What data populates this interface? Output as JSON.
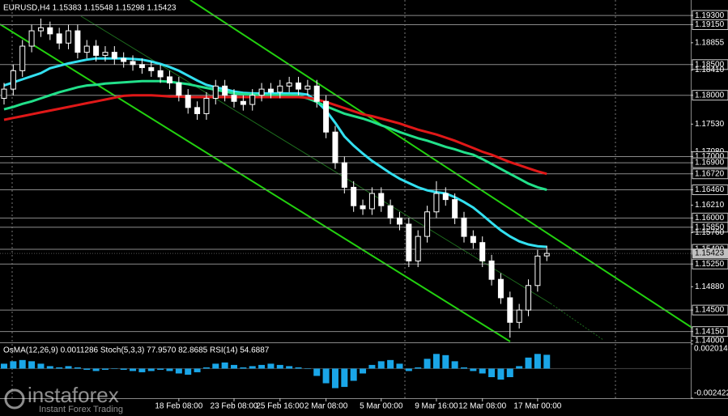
{
  "chart_data": {
    "type": "candlestick",
    "title": "EURUSD,H4  1.15383 1.15548 1.15298 1.15423",
    "categories": [
      null,
      null,
      null,
      null,
      null,
      null,
      null,
      null,
      null,
      null,
      null,
      null,
      null,
      null,
      null,
      null,
      null,
      null,
      null,
      "18 Feb 08:00",
      null,
      null,
      null,
      null,
      null,
      "23 Feb 08:00",
      null,
      null,
      null,
      null,
      "25 Feb 16:00",
      null,
      null,
      null,
      null,
      "2 Mar 08:00",
      null,
      null,
      null,
      null,
      null,
      "5 Mar 00:00",
      null,
      null,
      null,
      null,
      null,
      "9 Mar 16:00",
      null,
      null,
      null,
      null,
      "12 Mar 08:00",
      null,
      null,
      null,
      null,
      null,
      "17 Mar 00:00",
      null
    ],
    "open": [
      1.1795,
      1.181,
      1.184,
      1.188,
      1.1905,
      1.191,
      1.19,
      1.1885,
      1.1905,
      1.187,
      1.188,
      1.1865,
      1.187,
      1.186,
      1.1855,
      1.185,
      1.1845,
      1.184,
      1.183,
      1.182,
      1.18,
      1.178,
      1.177,
      1.1795,
      1.1815,
      1.18,
      1.179,
      1.1785,
      1.18,
      1.181,
      1.1805,
      1.1815,
      1.182,
      1.181,
      1.1815,
      1.179,
      1.174,
      1.169,
      1.165,
      1.162,
      1.1615,
      1.164,
      1.162,
      1.16,
      1.159,
      1.153,
      1.157,
      1.161,
      1.164,
      1.163,
      1.16,
      1.157,
      1.156,
      1.153,
      1.15,
      1.147,
      1.143,
      1.145,
      1.149,
      1.15383
    ],
    "high": [
      1.182,
      1.185,
      1.189,
      1.1915,
      1.1925,
      1.192,
      1.191,
      1.1915,
      1.1915,
      1.189,
      1.189,
      1.188,
      1.188,
      1.187,
      1.1865,
      1.186,
      1.1855,
      1.185,
      1.184,
      1.183,
      1.181,
      1.179,
      1.1805,
      1.1825,
      1.1825,
      1.181,
      1.18,
      1.181,
      1.182,
      1.182,
      1.1825,
      1.183,
      1.183,
      1.1825,
      1.1825,
      1.18,
      1.175,
      1.17,
      1.166,
      1.163,
      1.165,
      1.165,
      1.163,
      1.161,
      1.16,
      1.158,
      1.162,
      1.166,
      1.165,
      1.164,
      1.161,
      1.158,
      1.157,
      1.154,
      1.151,
      1.148,
      1.146,
      1.15,
      1.1548,
      1.15548
    ],
    "low": [
      1.1785,
      1.18,
      1.183,
      1.187,
      1.1895,
      1.189,
      1.1875,
      1.1875,
      1.186,
      1.186,
      1.1855,
      1.1855,
      1.185,
      1.1845,
      1.184,
      1.1835,
      1.183,
      1.182,
      1.181,
      1.179,
      1.177,
      1.176,
      1.176,
      1.1785,
      1.179,
      1.178,
      1.1775,
      1.1775,
      1.179,
      1.1795,
      1.1795,
      1.1805,
      1.18,
      1.18,
      1.178,
      1.173,
      1.168,
      1.164,
      1.161,
      1.1605,
      1.1605,
      1.161,
      1.159,
      1.158,
      1.152,
      1.152,
      1.156,
      1.16,
      1.162,
      1.159,
      1.156,
      1.155,
      1.152,
      1.149,
      1.146,
      1.1405,
      1.142,
      1.144,
      1.148,
      1.15298
    ],
    "close": [
      1.181,
      1.184,
      1.188,
      1.1905,
      1.191,
      1.19,
      1.1885,
      1.1905,
      1.187,
      1.188,
      1.1865,
      1.187,
      1.186,
      1.1855,
      1.185,
      1.1845,
      1.184,
      1.183,
      1.182,
      1.18,
      1.178,
      1.177,
      1.1795,
      1.1815,
      1.18,
      1.179,
      1.1785,
      1.18,
      1.181,
      1.1805,
      1.1815,
      1.182,
      1.181,
      1.1815,
      1.179,
      1.174,
      1.169,
      1.165,
      1.162,
      1.1615,
      1.164,
      1.162,
      1.16,
      1.159,
      1.153,
      1.157,
      1.161,
      1.164,
      1.163,
      1.16,
      1.157,
      1.156,
      1.153,
      1.15,
      1.147,
      1.143,
      1.145,
      1.149,
      1.1538,
      1.15423
    ],
    "candle_color": "#ffffff",
    "series": [
      {
        "color": "#33e0f0",
        "values": [
          1.1816,
          1.1821,
          1.1826,
          1.1831,
          1.1836,
          1.1844,
          1.1848,
          1.1852,
          1.1855,
          1.1858,
          1.186,
          1.186,
          1.186,
          1.186,
          1.1859,
          1.1858,
          1.1855,
          1.1851,
          1.1846,
          1.184,
          1.1832,
          1.1824,
          1.1817,
          1.1813,
          1.181,
          1.1806,
          1.1804,
          1.1803,
          1.1803,
          1.1803,
          1.1803,
          1.1803,
          1.1803,
          1.1801,
          1.179,
          1.1775,
          1.1755,
          1.1733,
          1.1718,
          1.1705,
          1.1693,
          1.1683,
          1.1673,
          1.1664,
          1.1657,
          1.165,
          1.1645,
          1.1642,
          1.164,
          1.1634,
          1.1626,
          1.1617,
          1.1605,
          1.1592,
          1.158,
          1.157,
          1.1562,
          1.1557,
          1.1554,
          1.1553
        ]
      },
      {
        "color": "#22e08a",
        "values": [
          1.1777,
          1.1781,
          1.1786,
          1.179,
          1.1795,
          1.18,
          1.1805,
          1.1809,
          1.1813,
          1.1816,
          1.1817,
          1.1819,
          1.182,
          1.1821,
          1.1822,
          1.1823,
          1.1823,
          1.1823,
          1.1822,
          1.182,
          1.1818,
          1.1815,
          1.1812,
          1.1809,
          1.1806,
          1.1803,
          1.1802,
          1.1801,
          1.18,
          1.18,
          1.18,
          1.18,
          1.1799,
          1.1795,
          1.1789,
          1.1782,
          1.1776,
          1.177,
          1.1766,
          1.1762,
          1.1757,
          1.1751,
          1.1746,
          1.174,
          1.1735,
          1.173,
          1.1726,
          1.1721,
          1.1716,
          1.1712,
          1.1707,
          1.1703,
          1.1696,
          1.1688,
          1.168,
          1.1672,
          1.1664,
          1.1656,
          1.165,
          1.1646
        ]
      },
      {
        "color": "#e01818",
        "values": [
          1.176,
          1.1763,
          1.1766,
          1.1769,
          1.1772,
          1.1775,
          1.1778,
          1.1781,
          1.1784,
          1.1787,
          1.179,
          1.1793,
          1.1796,
          1.1799,
          1.18,
          1.18,
          1.18,
          1.1799,
          1.1798,
          1.1798,
          1.1797,
          1.1797,
          1.1797,
          1.1797,
          1.1797,
          1.1797,
          1.1797,
          1.1797,
          1.1797,
          1.1797,
          1.1797,
          1.1797,
          1.1797,
          1.1796,
          1.1793,
          1.1789,
          1.1784,
          1.1779,
          1.1774,
          1.1769,
          1.1766,
          1.1762,
          1.1758,
          1.1754,
          1.1749,
          1.1744,
          1.174,
          1.1736,
          1.1731,
          1.1726,
          1.172,
          1.1714,
          1.1708,
          1.1703,
          1.1697,
          1.1691,
          1.1686,
          1.1681,
          1.1676,
          1.1672
        ]
      }
    ],
    "ylim": [
      1.13987,
      1.19552
    ],
    "yticks": [
      {
        "value": 1.193,
        "label": "1.19300",
        "level": true
      },
      {
        "value": 1.1915,
        "label": "1.19150",
        "level": true
      },
      {
        "value": 1.18855,
        "label": "1.18855"
      },
      {
        "value": 1.185,
        "label": "1.18500",
        "level": true
      },
      {
        "value": 1.1841,
        "label": "1.18410"
      },
      {
        "value": 1.18,
        "label": "1.18000",
        "level": true
      },
      {
        "value": 1.1753,
        "label": "1.17530"
      },
      {
        "value": 1.1708,
        "label": "1.17080"
      },
      {
        "value": 1.17,
        "label": "1.17000",
        "level": true
      },
      {
        "value": 1.169,
        "label": "1.16900",
        "level": true
      },
      {
        "value": 1.1672,
        "label": "1.16720",
        "level": true
      },
      {
        "value": 1.1646,
        "label": "1.16460",
        "level": true
      },
      {
        "value": 1.1621,
        "label": "1.16210"
      },
      {
        "value": 1.16,
        "label": "1.16000",
        "level": true
      },
      {
        "value": 1.1585,
        "label": "1.15850",
        "level": true
      },
      {
        "value": 1.1576,
        "label": "1.15760"
      },
      {
        "value": 1.1549,
        "label": "1.15490",
        "level": true
      },
      {
        "value": 1.1525,
        "label": "1.15250",
        "level": true
      },
      {
        "value": 1.1488,
        "label": "1.14880"
      },
      {
        "value": 1.145,
        "label": "1.14500",
        "level": true
      },
      {
        "value": 1.1415,
        "label": "1.14150",
        "level": true
      },
      {
        "value": 1.14,
        "label": "1.14000"
      }
    ],
    "last_price": {
      "value": 1.15423,
      "label": "1.15423"
    },
    "indicator": {
      "type": "bar",
      "title": "OsMA(12,26,9) 0.0011286  Stoch(5,3,3) 77.9570 82.8685  RSI(14) 54.6887",
      "color": "#1aa6e8",
      "values": [
        0.0004,
        0.0006,
        0.0007,
        0.0006,
        0.0004,
        0.0002,
        0.0001,
        0.0002,
        0.0001,
        -0.0001,
        -0.0002,
        -0.0001,
        0.0,
        -0.0001,
        -0.0002,
        -0.0003,
        -0.0002,
        -0.0001,
        -0.0002,
        -0.0004,
        -0.0005,
        -0.0003,
        0.0001,
        0.0004,
        0.0005,
        0.0003,
        0.0001,
        0.0002,
        0.0003,
        0.0004,
        0.0003,
        0.0002,
        0.0001,
        0.0,
        -0.0006,
        -0.0012,
        -0.0016,
        -0.0015,
        -0.001,
        -0.0004,
        0.0003,
        0.0006,
        0.0007,
        0.0004,
        -0.0002,
        0.0001,
        0.0008,
        0.0012,
        0.0011,
        0.0006,
        0.0001,
        -0.0002,
        -0.0004,
        -0.0007,
        -0.0009,
        -0.0007,
        0.0002,
        0.0009,
        0.0012,
        0.0011286
      ],
      "ylim": [
        -0.002422,
        0.002014
      ],
      "yticks": [
        {
          "value": 0.002014,
          "label": "0.002014"
        },
        {
          "value": -0.002422,
          "label": "-0.002422"
        }
      ]
    }
  },
  "watermark": {
    "brand": "instaforex",
    "tagline": "Instant Forex Trading"
  }
}
